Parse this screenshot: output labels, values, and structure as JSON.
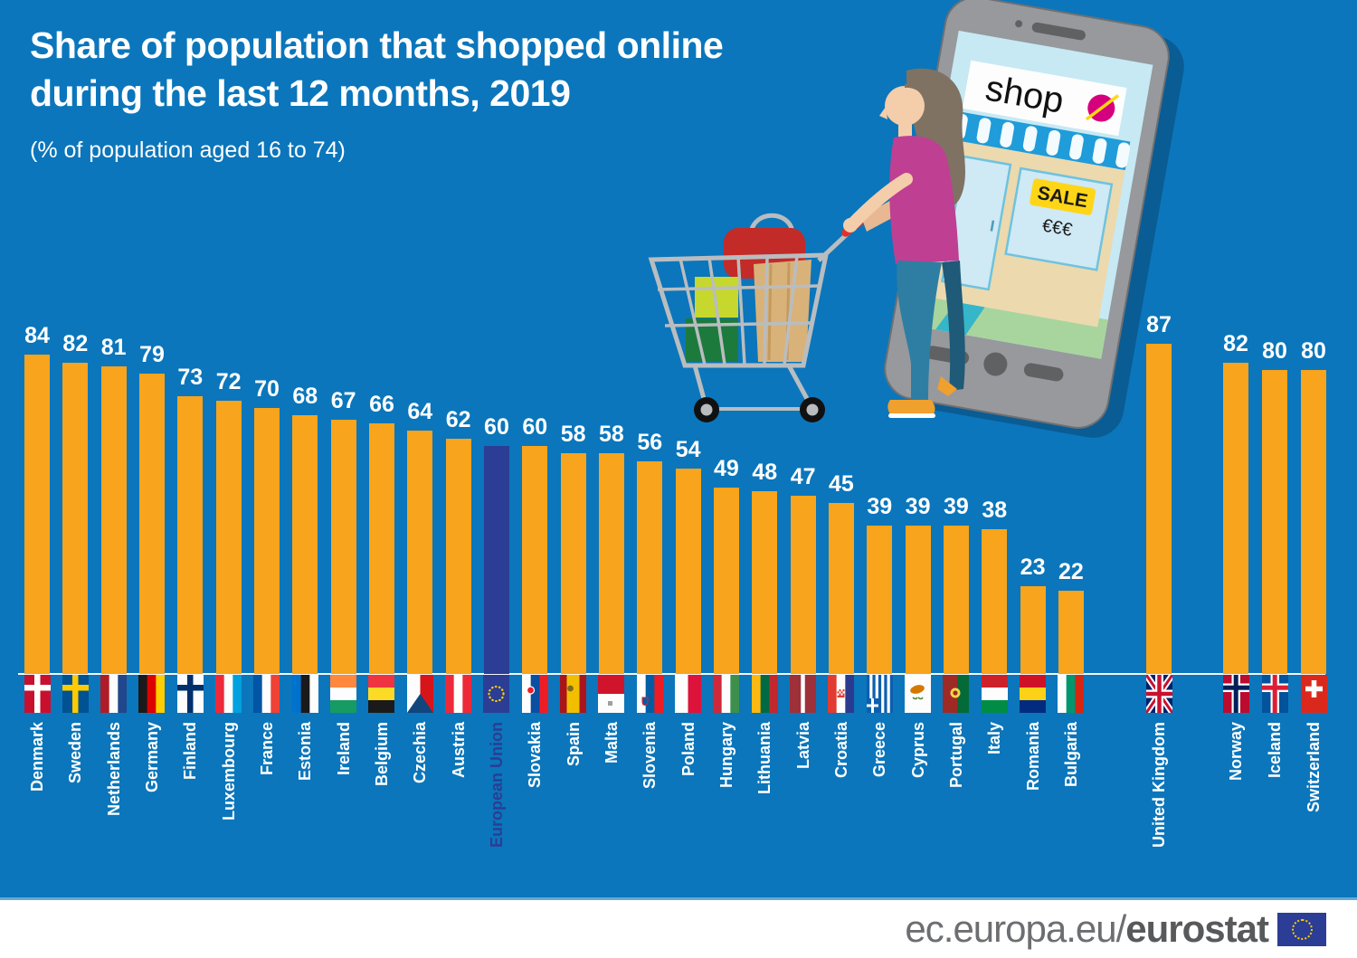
{
  "title": {
    "line1": "Share of population that shopped online",
    "line2": "during the last 12 months, 2019",
    "subtitle": "(% of population aged 16 to 74)"
  },
  "chart_data": {
    "type": "bar",
    "title": "Share of population that shopped online during the last 12 months, 2019",
    "unit": "% of population aged 16 to 74",
    "categories": [
      "Denmark",
      "Sweden",
      "Netherlands",
      "Germany",
      "Finland",
      "Luxembourg",
      "France",
      "Estonia",
      "Ireland",
      "Belgium",
      "Czechia",
      "Austria",
      "European Union",
      "Slovakia",
      "Spain",
      "Malta",
      "Slovenia",
      "Poland",
      "Hungary",
      "Lithuania",
      "Latvia",
      "Croatia",
      "Greece",
      "Cyprus",
      "Portugal",
      "Italy",
      "Romania",
      "Bulgaria",
      "United Kingdom",
      "Norway",
      "Iceland",
      "Switzerland"
    ],
    "values": [
      84,
      82,
      81,
      79,
      73,
      72,
      70,
      68,
      67,
      66,
      64,
      62,
      60,
      60,
      58,
      58,
      56,
      54,
      49,
      48,
      47,
      45,
      39,
      39,
      39,
      38,
      23,
      22,
      87,
      82,
      80,
      80
    ],
    "bar_color": "#f8a41c",
    "highlight": {
      "category": "European Union",
      "color": "#2b3d94"
    },
    "ylim": [
      0,
      100
    ],
    "grid": false,
    "value_labels": true,
    "legend": "none"
  },
  "countries": [
    {
      "name": "Denmark",
      "value": 84,
      "flag": "dk",
      "group": "eu"
    },
    {
      "name": "Sweden",
      "value": 82,
      "flag": "se",
      "group": "eu"
    },
    {
      "name": "Netherlands",
      "value": 81,
      "flag": "nl",
      "group": "eu"
    },
    {
      "name": "Germany",
      "value": 79,
      "flag": "de",
      "group": "eu"
    },
    {
      "name": "Finland",
      "value": 73,
      "flag": "fi",
      "group": "eu"
    },
    {
      "name": "Luxembourg",
      "value": 72,
      "flag": "lu",
      "group": "eu"
    },
    {
      "name": "France",
      "value": 70,
      "flag": "fr",
      "group": "eu"
    },
    {
      "name": "Estonia",
      "value": 68,
      "flag": "ee",
      "group": "eu"
    },
    {
      "name": "Ireland",
      "value": 67,
      "flag": "ie",
      "group": "eu"
    },
    {
      "name": "Belgium",
      "value": 66,
      "flag": "be",
      "group": "eu"
    },
    {
      "name": "Czechia",
      "value": 64,
      "flag": "cz",
      "group": "eu"
    },
    {
      "name": "Austria",
      "value": 62,
      "flag": "at",
      "group": "eu"
    },
    {
      "name": "European Union",
      "value": 60,
      "flag": "eu",
      "group": "eu"
    },
    {
      "name": "Slovakia",
      "value": 60,
      "flag": "sk",
      "group": "eu"
    },
    {
      "name": "Spain",
      "value": 58,
      "flag": "es",
      "group": "eu"
    },
    {
      "name": "Malta",
      "value": 58,
      "flag": "mt",
      "group": "eu"
    },
    {
      "name": "Slovenia",
      "value": 56,
      "flag": "si",
      "group": "eu"
    },
    {
      "name": "Poland",
      "value": 54,
      "flag": "pl",
      "group": "eu"
    },
    {
      "name": "Hungary",
      "value": 49,
      "flag": "hu",
      "group": "eu"
    },
    {
      "name": "Lithuania",
      "value": 48,
      "flag": "lt",
      "group": "eu"
    },
    {
      "name": "Latvia",
      "value": 47,
      "flag": "lv",
      "group": "eu"
    },
    {
      "name": "Croatia",
      "value": 45,
      "flag": "hr",
      "group": "eu"
    },
    {
      "name": "Greece",
      "value": 39,
      "flag": "gr",
      "group": "eu"
    },
    {
      "name": "Cyprus",
      "value": 39,
      "flag": "cy",
      "group": "eu"
    },
    {
      "name": "Portugal",
      "value": 39,
      "flag": "pt",
      "group": "eu"
    },
    {
      "name": "Italy",
      "value": 38,
      "flag": "it",
      "group": "eu"
    },
    {
      "name": "Romania",
      "value": 23,
      "flag": "ro",
      "group": "eu"
    },
    {
      "name": "Bulgaria",
      "value": 22,
      "flag": "bg",
      "group": "eu"
    },
    {
      "name": "United Kingdom",
      "value": 87,
      "flag": "uk",
      "group": "uk"
    },
    {
      "name": "Norway",
      "value": 82,
      "flag": "no",
      "group": "efta"
    },
    {
      "name": "Iceland",
      "value": 80,
      "flag": "is",
      "group": "efta"
    },
    {
      "name": "Switzerland",
      "value": 80,
      "flag": "ch",
      "group": "efta"
    }
  ],
  "illustration": {
    "shop_sign_label": "shop",
    "sale_label": "SALE",
    "euro_label": "€€€"
  },
  "footer": {
    "url_prefix": "ec.europa.eu/",
    "url_bold": "eurostat"
  },
  "colors": {
    "background": "#0b76bb",
    "bar": "#f8a41c",
    "eu_bar": "#2b3d94",
    "value_text": "#ffffff",
    "label_text": "#ffffff",
    "eu_label_text": "#2b3d94",
    "baseline": "#f4f7f9",
    "footer_text": "#6d6e71",
    "footer_bold_text": "#58595b",
    "separator": "#63a9d8",
    "logo_blue": "#2b3d94",
    "star_yellow": "#ffcc00"
  }
}
